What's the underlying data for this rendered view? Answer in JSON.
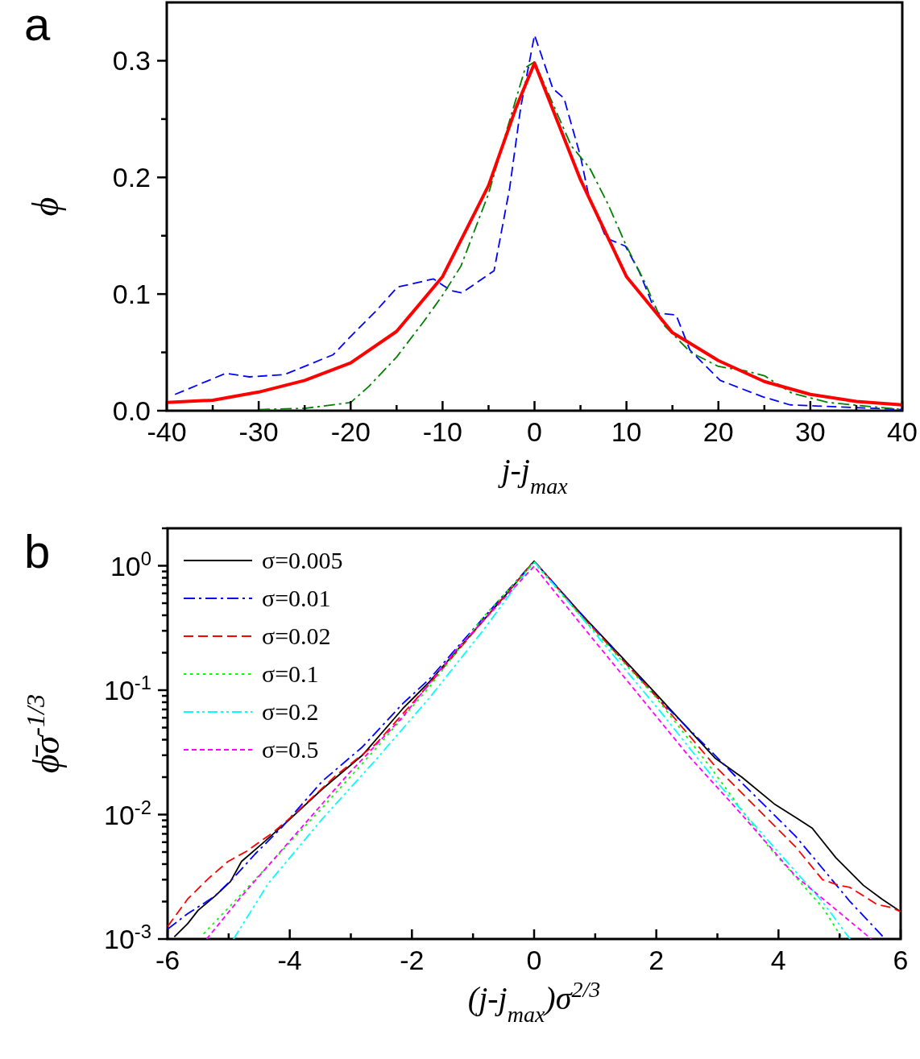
{
  "chart_data": [
    {
      "type": "line",
      "xlabel": "j-j$_{max}$",
      "ylabel": "ϕ",
      "annotations": [
        "a"
      ],
      "xlim": [
        -40,
        40
      ],
      "ylim": [
        0,
        0.35
      ],
      "xticks": [
        -40,
        {
          "value": -35,
          "label": null
        },
        -30,
        {
          "value": -25,
          "label": null
        },
        -20,
        {
          "value": -15,
          "label": null
        },
        -10,
        {
          "value": -5,
          "label": null
        },
        0,
        {
          "value": 5,
          "label": null
        },
        10,
        {
          "value": 15,
          "label": null
        },
        20,
        {
          "value": 25,
          "label": null
        },
        30,
        {
          "value": 35,
          "label": null
        },
        40
      ],
      "yticks": [
        {
          "value": 0,
          "label": "0.0"
        },
        {
          "value": 0.05,
          "label": null
        },
        0.1,
        {
          "value": 0.15,
          "label": null
        },
        0.2,
        {
          "value": 0.25,
          "label": null
        },
        0.3
      ],
      "grid": false,
      "legend": false,
      "series": [
        {
          "color": "#0000ff",
          "line_style": "dashed",
          "x": [
            -39.1,
            -33.6,
            -31.0,
            -27.2,
            -21.9,
            -20.2,
            -17.3,
            -14.9,
            -13.2,
            -11.0,
            -9.1,
            -7.9,
            -4.4,
            -2.7,
            -1.5,
            0,
            2.0,
            3.2,
            5.0,
            5.9,
            7.8,
            9.9,
            11.4,
            13.2,
            15.4,
            16.9,
            19.3,
            20.2,
            24.8,
            27.8,
            40
          ],
          "values": [
            0.014,
            0.032,
            0.029,
            0.031,
            0.048,
            0.062,
            0.085,
            0.106,
            0.109,
            0.113,
            0.103,
            0.101,
            0.12,
            0.191,
            0.26,
            0.322,
            0.276,
            0.268,
            0.218,
            0.184,
            0.148,
            0.141,
            0.119,
            0.084,
            0.082,
            0.052,
            0.033,
            0.026,
            0.012,
            0.005,
            0.001
          ]
        },
        {
          "color": "#007f00",
          "line_style": "dashdot",
          "x": [
            -30,
            -25,
            -20,
            -18,
            -15,
            -12,
            -10,
            -8,
            -5,
            -3,
            -1,
            0,
            2,
            4,
            6,
            8,
            10,
            12,
            14,
            17,
            20,
            23,
            25,
            28,
            32,
            40
          ],
          "values": [
            0.001,
            0.002,
            0.007,
            0.021,
            0.046,
            0.077,
            0.099,
            0.124,
            0.186,
            0.241,
            0.294,
            0.299,
            0.263,
            0.227,
            0.208,
            0.177,
            0.141,
            0.11,
            0.074,
            0.05,
            0.038,
            0.034,
            0.03,
            0.015,
            0.007,
            0.001
          ]
        },
        {
          "color": "#ff0000",
          "line_style": "solid",
          "x": [
            -40,
            -35,
            -30,
            -25,
            -20,
            -15,
            -10,
            -5,
            -2,
            0,
            5,
            10,
            15,
            20,
            25,
            30,
            35,
            40
          ],
          "values": [
            0.007,
            0.009,
            0.016,
            0.026,
            0.041,
            0.068,
            0.115,
            0.193,
            0.26,
            0.298,
            0.198,
            0.115,
            0.067,
            0.043,
            0.025,
            0.014,
            0.008,
            0.005
          ]
        }
      ]
    },
    {
      "type": "line",
      "xlabel": "(j-j$_{max}$)σ$^{2/3}$",
      "ylabel": "ϕ̄σ$^{-1/3}$",
      "annotations": [
        "b"
      ],
      "log": "y",
      "xlim": [
        -6,
        6
      ],
      "ylim": [
        0.001,
        2
      ],
      "xticks": [
        -6,
        {
          "value": -5,
          "label": null
        },
        -4,
        {
          "value": -3,
          "label": null
        },
        -2,
        {
          "value": -1,
          "label": null
        },
        0,
        {
          "value": 1,
          "label": null
        },
        2,
        {
          "value": 3,
          "label": null
        },
        4,
        {
          "value": 5,
          "label": null
        },
        6
      ],
      "yticks": [
        {
          "value": 0.001,
          "label": "10$^{-3}$"
        },
        {
          "value": 0.002,
          "label": null
        },
        {
          "value": 0.003,
          "label": null
        },
        {
          "value": 0.004,
          "label": null
        },
        {
          "value": 0.005,
          "label": null
        },
        {
          "value": 0.006,
          "label": null
        },
        {
          "value": 0.007,
          "label": null
        },
        {
          "value": 0.008,
          "label": null
        },
        {
          "value": 0.009,
          "label": null
        },
        {
          "value": 0.01,
          "label": "10$^{-2}$"
        },
        {
          "value": 0.02,
          "label": null
        },
        {
          "value": 0.03,
          "label": null
        },
        {
          "value": 0.04,
          "label": null
        },
        {
          "value": 0.05,
          "label": null
        },
        {
          "value": 0.06,
          "label": null
        },
        {
          "value": 0.07,
          "label": null
        },
        {
          "value": 0.08,
          "label": null
        },
        {
          "value": 0.09,
          "label": null
        },
        {
          "value": 0.1,
          "label": "10$^{-1}$"
        },
        {
          "value": 0.2,
          "label": null
        },
        {
          "value": 0.3,
          "label": null
        },
        {
          "value": 0.4,
          "label": null
        },
        {
          "value": 0.5,
          "label": null
        },
        {
          "value": 0.6,
          "label": null
        },
        {
          "value": 0.7,
          "label": null
        },
        {
          "value": 0.8,
          "label": null
        },
        {
          "value": 0.9,
          "label": null
        },
        {
          "value": 1,
          "label": "10$^{0}$"
        },
        {
          "value": 2,
          "label": null
        }
      ],
      "grid": false,
      "legend": "top left",
      "series": [
        {
          "name": "σ=0.005",
          "color": "#000000",
          "line_style": "solid",
          "x": [
            -5.89,
            -5.67,
            -5.5,
            -5.23,
            -4.97,
            -4.79,
            -4.44,
            -4.04,
            -3.47,
            -2.81,
            -2.15,
            -1.72,
            -1.06,
            -0.48,
            0,
            0.75,
            1.41,
            1.99,
            2.52,
            2.96,
            3.4,
            3.93,
            4.28,
            4.55,
            4.94,
            5.39,
            5.69,
            6
          ],
          "values": [
            0.00104,
            0.00133,
            0.0017,
            0.0022,
            0.0029,
            0.0042,
            0.0059,
            0.0088,
            0.016,
            0.03,
            0.071,
            0.116,
            0.271,
            0.571,
            1.09,
            0.42,
            0.19,
            0.094,
            0.049,
            0.0285,
            0.02,
            0.0122,
            0.0095,
            0.0078,
            0.0045,
            0.0027,
            0.0021,
            0.00166
          ]
        },
        {
          "name": "σ=0.01",
          "color": "#0000ff",
          "line_style": "dashdot",
          "x": [
            -6,
            -5.67,
            -5.23,
            -4.92,
            -4.57,
            -4.13,
            -3.47,
            -2.81,
            -2.15,
            -1.72,
            -1.06,
            0,
            0.75,
            1.99,
            2.96,
            3.4,
            3.84,
            4.28,
            4.72,
            5.17,
            5.74
          ],
          "values": [
            0.0012,
            0.0016,
            0.0022,
            0.0031,
            0.0048,
            0.0079,
            0.0185,
            0.035,
            0.078,
            0.122,
            0.285,
            1.09,
            0.42,
            0.09,
            0.03,
            0.018,
            0.011,
            0.0067,
            0.0037,
            0.002,
            0.00101
          ]
        },
        {
          "name": "σ=0.02",
          "color": "#ff0000",
          "line_style": "dashed",
          "x": [
            -6,
            -5.67,
            -5.32,
            -5.01,
            -4.7,
            -4.27,
            -3.91,
            -3.25,
            -2.59,
            -1.72,
            0,
            0.75,
            1.99,
            2.96,
            3.62,
            4.28,
            4.72,
            4.99,
            5.17,
            5.61,
            5.83,
            6
          ],
          "values": [
            0.00126,
            0.0021,
            0.0031,
            0.0042,
            0.0051,
            0.0072,
            0.0102,
            0.0205,
            0.037,
            0.111,
            1.09,
            0.41,
            0.09,
            0.0246,
            0.0116,
            0.0055,
            0.003,
            0.0027,
            0.0026,
            0.0019,
            0.0018,
            0.00166
          ]
        },
        {
          "name": "σ=0.1",
          "color": "#00ff00",
          "line_style": "dotted",
          "x": [
            -5.41,
            -4.79,
            -4.13,
            -3.47,
            -2.59,
            -1.72,
            -0.84,
            0,
            0.75,
            1.99,
            2.87,
            3.84,
            4.72,
            5.05
          ],
          "values": [
            0.0011,
            0.0023,
            0.0051,
            0.0113,
            0.034,
            0.105,
            0.384,
            1.06,
            0.4,
            0.088,
            0.0246,
            0.0055,
            0.0018,
            0.001
          ]
        },
        {
          "name": "σ=0.2",
          "color": "#00ffff",
          "line_style": "dashdotdot",
          "x": [
            -4.92,
            -4.35,
            -3.47,
            -2.59,
            -1.72,
            -0.84,
            0,
            0.75,
            2.07,
            2.96,
            3.84,
            4.72,
            5.17
          ],
          "values": [
            0.001,
            0.0028,
            0.0092,
            0.0276,
            0.086,
            0.3,
            1.08,
            0.4,
            0.067,
            0.019,
            0.0061,
            0.002,
            0.001
          ]
        },
        {
          "name": "σ=0.5",
          "color": "#ff00ff",
          "line_style": "short_dashed",
          "x": [
            -5.36,
            -4.79,
            -3.91,
            -3.03,
            -2.15,
            -1.28,
            0,
            0.75,
            2.52,
            3.4,
            4.28,
            5.52
          ],
          "values": [
            0.001,
            0.0022,
            0.0069,
            0.0215,
            0.061,
            0.21,
            0.99,
            0.346,
            0.03,
            0.01,
            0.0032,
            0.001
          ]
        }
      ]
    }
  ]
}
